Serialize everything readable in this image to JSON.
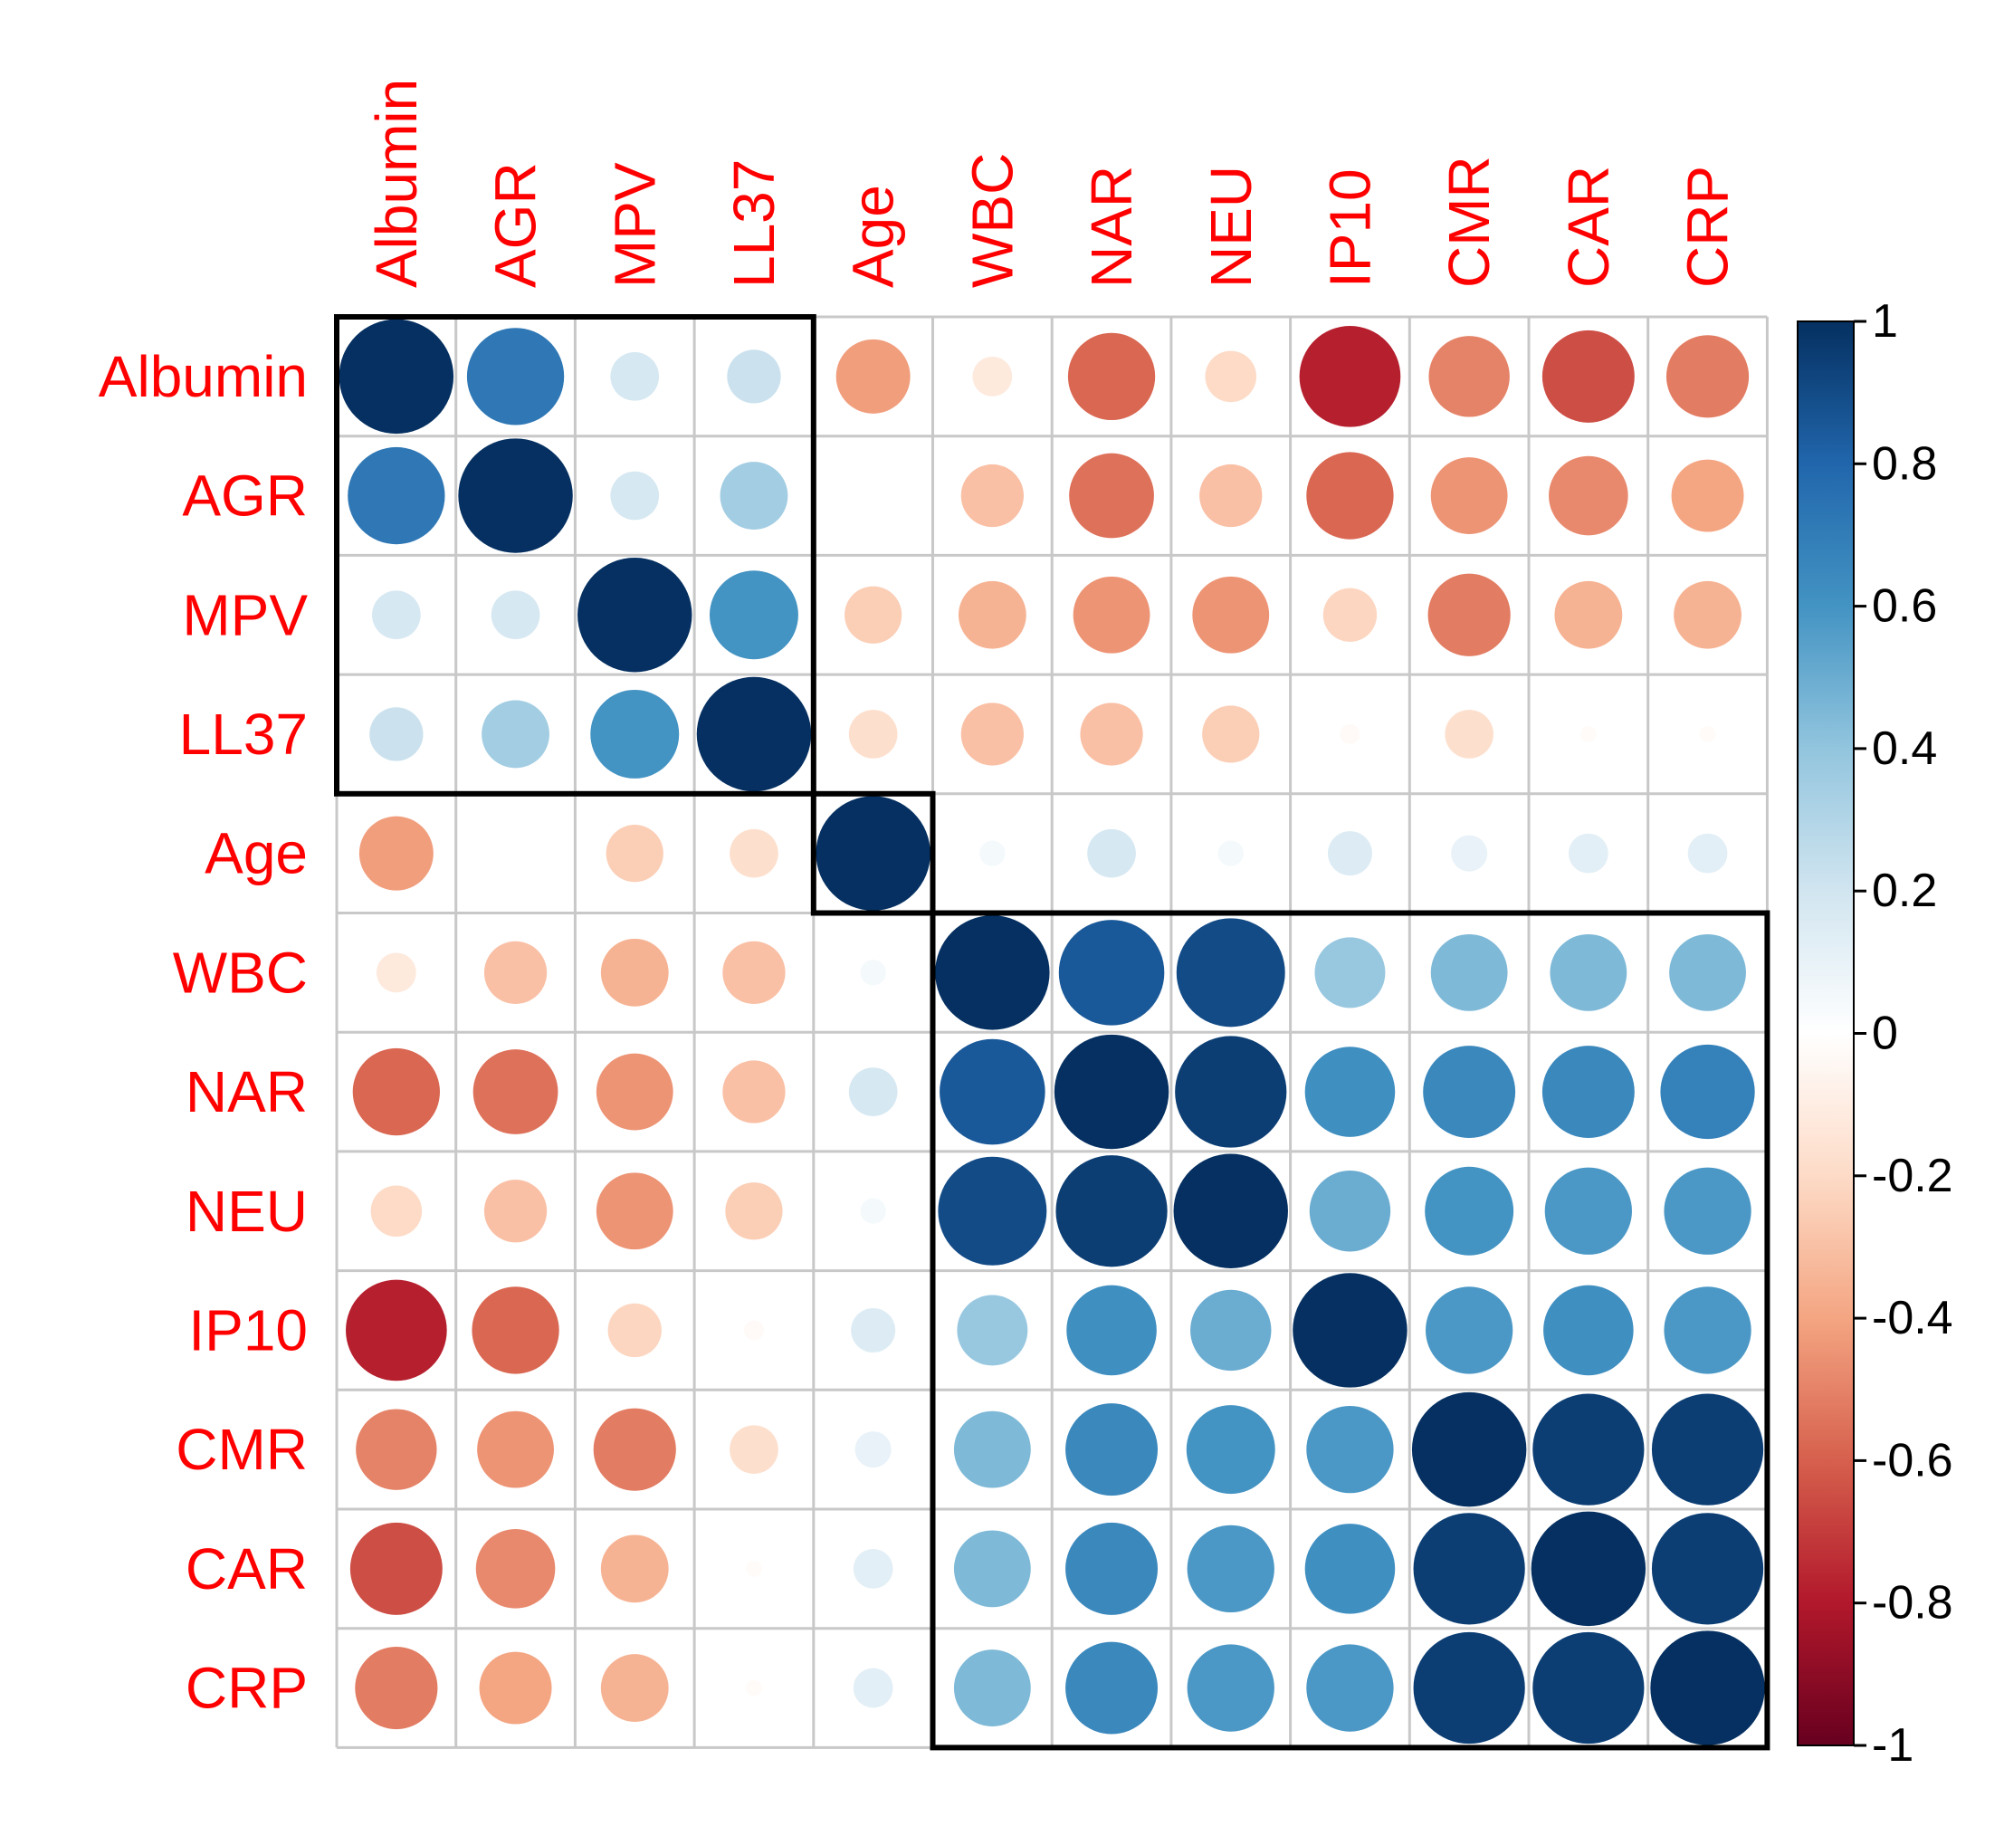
{
  "chart_data": {
    "type": "heatmap",
    "style": "correlation-circles",
    "title": "",
    "variables": [
      "Albumin",
      "AGR",
      "MPV",
      "LL37",
      "Age",
      "WBC",
      "NAR",
      "NEU",
      "IP10",
      "CMR",
      "CAR",
      "CRP"
    ],
    "matrix": [
      [
        1.0,
        0.72,
        0.18,
        0.22,
        -0.42,
        -0.12,
        -0.58,
        -0.2,
        -0.78,
        -0.5,
        -0.65,
        -0.52
      ],
      [
        0.72,
        1.0,
        0.18,
        0.35,
        0.0,
        -0.3,
        -0.55,
        -0.3,
        -0.58,
        -0.45,
        -0.48,
        -0.4
      ],
      [
        0.18,
        0.18,
        1.0,
        0.6,
        -0.25,
        -0.35,
        -0.45,
        -0.45,
        -0.22,
        -0.52,
        -0.35,
        -0.35
      ],
      [
        0.22,
        0.35,
        0.6,
        1.0,
        -0.18,
        -0.3,
        -0.3,
        -0.25,
        -0.03,
        -0.18,
        -0.02,
        -0.02
      ],
      [
        -0.42,
        0.0,
        -0.25,
        -0.18,
        1.0,
        0.05,
        0.18,
        0.05,
        0.15,
        0.1,
        0.12,
        0.12
      ],
      [
        -0.12,
        -0.3,
        -0.35,
        -0.3,
        0.05,
        1.0,
        0.85,
        0.9,
        0.38,
        0.45,
        0.45,
        0.45
      ],
      [
        -0.58,
        -0.55,
        -0.45,
        -0.3,
        0.18,
        0.85,
        1.0,
        0.95,
        0.62,
        0.65,
        0.65,
        0.68
      ],
      [
        -0.2,
        -0.3,
        -0.45,
        -0.25,
        0.05,
        0.9,
        0.95,
        1.0,
        0.5,
        0.6,
        0.58,
        0.58
      ],
      [
        -0.78,
        -0.58,
        -0.22,
        -0.03,
        0.15,
        0.38,
        0.62,
        0.5,
        1.0,
        0.58,
        0.62,
        0.58
      ],
      [
        -0.5,
        -0.45,
        -0.52,
        -0.18,
        0.1,
        0.45,
        0.65,
        0.6,
        0.58,
        1.0,
        0.95,
        0.95
      ],
      [
        -0.65,
        -0.48,
        -0.35,
        -0.02,
        0.12,
        0.45,
        0.65,
        0.58,
        0.62,
        0.95,
        1.0,
        0.95
      ],
      [
        -0.52,
        -0.4,
        -0.35,
        -0.02,
        0.12,
        0.45,
        0.65,
        0.58,
        0.58,
        0.95,
        0.95,
        1.0
      ]
    ],
    "clusters": [
      {
        "from": 0,
        "to": 3
      },
      {
        "from": 4,
        "to": 4
      },
      {
        "from": 5,
        "to": 11
      }
    ],
    "colorbar": {
      "range": [
        -1,
        1
      ],
      "ticks": [
        "1",
        "0.8",
        "0.6",
        "0.4",
        "0.2",
        "0",
        "-0.2",
        "-0.4",
        "-0.6",
        "-0.8",
        "-1"
      ],
      "tick_values": [
        1,
        0.8,
        0.6,
        0.4,
        0.2,
        0,
        -0.2,
        -0.4,
        -0.6,
        -0.8,
        -1
      ]
    },
    "label_color": "#FF0000",
    "grid": true
  }
}
